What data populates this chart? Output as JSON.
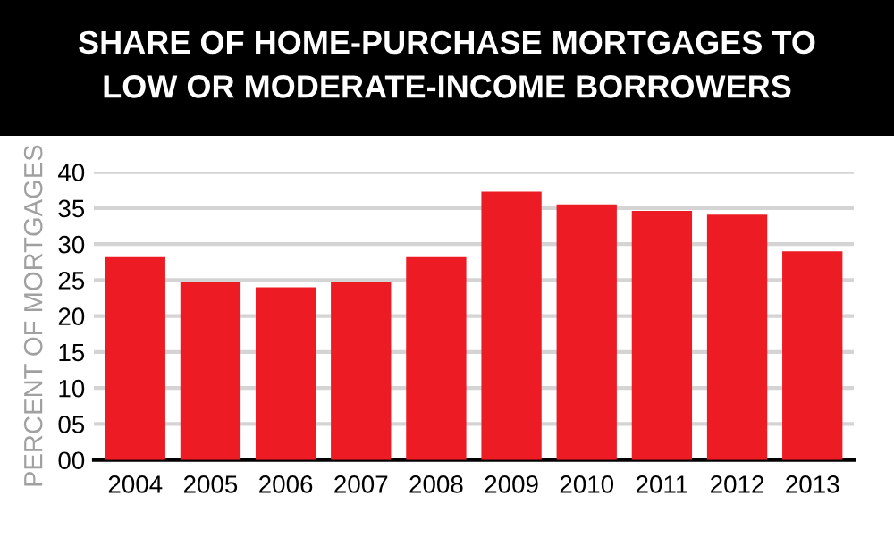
{
  "chart_data": {
    "type": "bar",
    "title": "SHARE OF HOME-PURCHASE MORTGAGES TO\nLOW OR MODERATE-INCOME BORROWERS",
    "ylabel": "PERCENT OF MORTGAGES",
    "categories": [
      "2004",
      "2005",
      "2006",
      "2007",
      "2008",
      "2009",
      "2010",
      "2011",
      "2012",
      "2013"
    ],
    "values": [
      28.2,
      24.7,
      24.0,
      24.7,
      28.2,
      37.3,
      35.5,
      34.6,
      34.1,
      29.0
    ],
    "color": "#ed1c24",
    "ylim": [
      0,
      40
    ],
    "yticks": [
      {
        "value": 0,
        "label": "00"
      },
      {
        "value": 5,
        "label": "05"
      },
      10,
      15,
      20,
      25,
      30,
      35,
      40
    ],
    "grid": "y"
  }
}
